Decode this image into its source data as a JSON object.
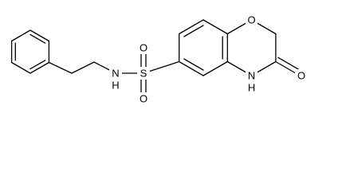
{
  "atom_labels": {
    "ring_oxygen": "O",
    "carbonyl_oxygen": "O",
    "ring_nitrogen": "N",
    "ring_nitrogen_h": "H",
    "sulfur": "S",
    "sulfonyl_oxygen_top": "O",
    "sulfonyl_oxygen_bottom": "O",
    "amide_nitrogen": "N",
    "amide_nitrogen_h": "H"
  }
}
